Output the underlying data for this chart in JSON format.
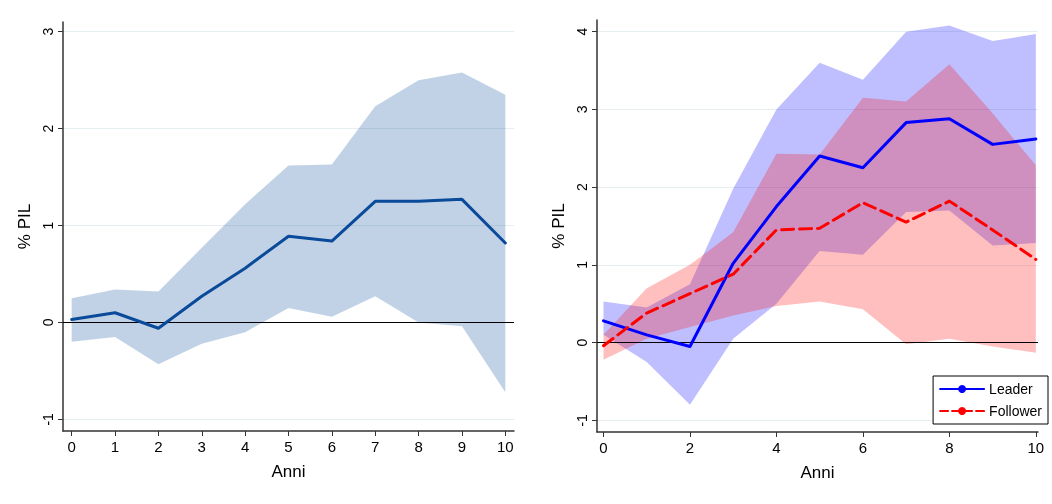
{
  "chart_data": [
    {
      "type": "line",
      "xlabel": "Anni",
      "ylabel": "% PIL",
      "x": [
        0,
        1,
        2,
        3,
        4,
        5,
        6,
        7,
        8,
        9,
        10
      ],
      "xlim": [
        -0.2,
        10.2
      ],
      "xticks": [
        0,
        1,
        2,
        3,
        4,
        5,
        6,
        7,
        8,
        9,
        10
      ],
      "ylim": [
        -1.12,
        3.1
      ],
      "yticks": [
        -1,
        0,
        1,
        2,
        3
      ],
      "grid": "y",
      "marker": "none",
      "legend": false,
      "ref_lines": [
        {
          "axis": "y",
          "value": 0,
          "color": "#000000"
        }
      ],
      "series": [
        {
          "color": "#0a4a9a",
          "line_style": "solid",
          "values": [
            0.03,
            0.1,
            -0.06,
            0.27,
            0.56,
            0.89,
            0.84,
            1.25,
            1.25,
            1.27,
            0.82
          ],
          "lower": [
            -0.2,
            -0.15,
            -0.43,
            -0.22,
            -0.1,
            0.15,
            0.06,
            0.27,
            0.0,
            -0.04,
            -0.72
          ],
          "upper": [
            0.25,
            0.34,
            0.32,
            0.77,
            1.22,
            1.62,
            1.63,
            2.23,
            2.5,
            2.58,
            2.35
          ]
        }
      ]
    },
    {
      "type": "line",
      "xlabel": "Anni",
      "ylabel": "% PIL",
      "x": [
        0,
        1,
        2,
        3,
        4,
        5,
        6,
        7,
        8,
        9,
        10
      ],
      "xlim": [
        -0.15,
        10.05
      ],
      "xticks": [
        0,
        2,
        4,
        6,
        8,
        10
      ],
      "ylim": [
        -1.15,
        4.15
      ],
      "yticks": [
        -1,
        0,
        1,
        2,
        3,
        4
      ],
      "grid": "y",
      "marker": "none",
      "legend": "bottom right",
      "ref_lines": [
        {
          "axis": "y",
          "value": 0,
          "color": "#000000"
        }
      ],
      "series": [
        {
          "name": "Leader",
          "color": "#0000ff",
          "line_style": "solid",
          "values": [
            0.28,
            0.1,
            -0.05,
            1.02,
            1.75,
            2.4,
            2.25,
            2.83,
            2.88,
            2.55,
            2.62
          ],
          "lower": [
            0.1,
            -0.25,
            -0.8,
            0.05,
            0.5,
            1.18,
            1.13,
            1.68,
            1.7,
            1.25,
            1.28
          ],
          "upper": [
            0.53,
            0.45,
            0.75,
            1.98,
            3.0,
            3.6,
            3.38,
            4.0,
            4.08,
            3.88,
            3.97
          ]
        },
        {
          "name": "Follower",
          "color": "#ff0000",
          "line_style": "dashed",
          "values": [
            -0.04,
            0.38,
            0.63,
            0.88,
            1.45,
            1.47,
            1.8,
            1.55,
            1.82,
            1.45,
            1.07
          ],
          "lower": [
            -0.22,
            0.05,
            0.2,
            0.35,
            0.47,
            0.53,
            0.43,
            -0.02,
            0.05,
            -0.05,
            -0.13
          ],
          "upper": [
            0.1,
            0.7,
            1.0,
            1.42,
            2.43,
            2.42,
            3.15,
            3.1,
            3.58,
            2.95,
            2.28
          ]
        }
      ]
    }
  ]
}
